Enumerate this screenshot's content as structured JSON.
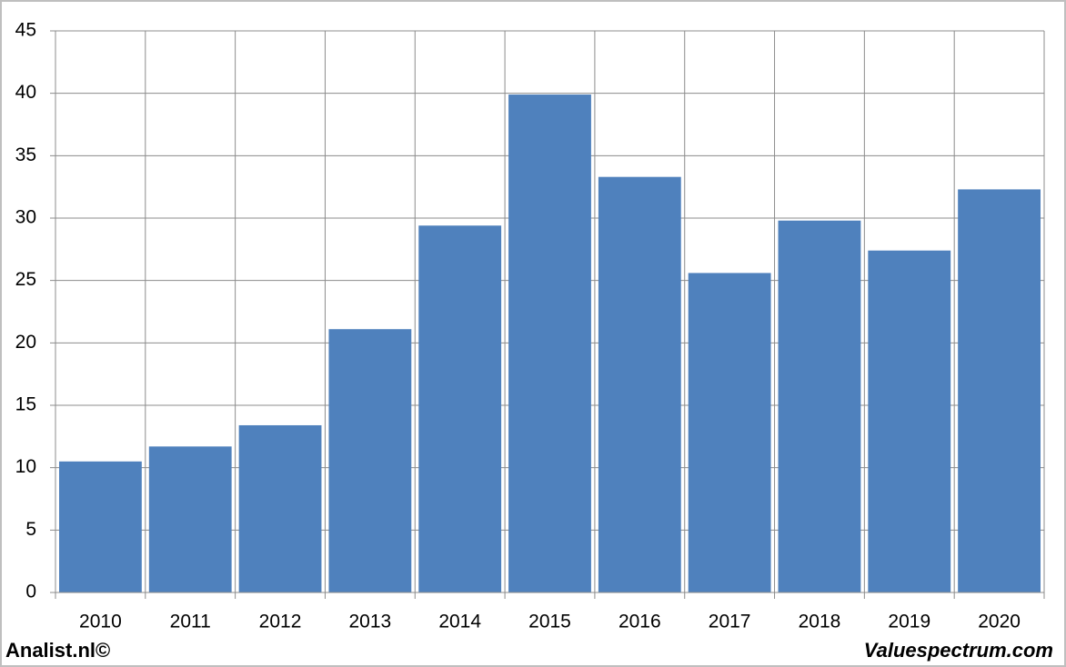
{
  "chart_data": {
    "type": "bar",
    "categories": [
      "2010",
      "2011",
      "2012",
      "2013",
      "2014",
      "2015",
      "2016",
      "2017",
      "2018",
      "2019",
      "2020"
    ],
    "values": [
      10.5,
      11.7,
      13.4,
      21.1,
      29.4,
      39.9,
      33.3,
      25.6,
      29.8,
      27.4,
      32.3
    ],
    "color": "#4f81bd",
    "ylim": [
      0,
      45
    ],
    "yticks": [
      0,
      5,
      10,
      15,
      20,
      25,
      30,
      35,
      40,
      45
    ],
    "grid": true,
    "annotations": [
      "Analist.nl©",
      "Valuespectrum.com"
    ]
  }
}
